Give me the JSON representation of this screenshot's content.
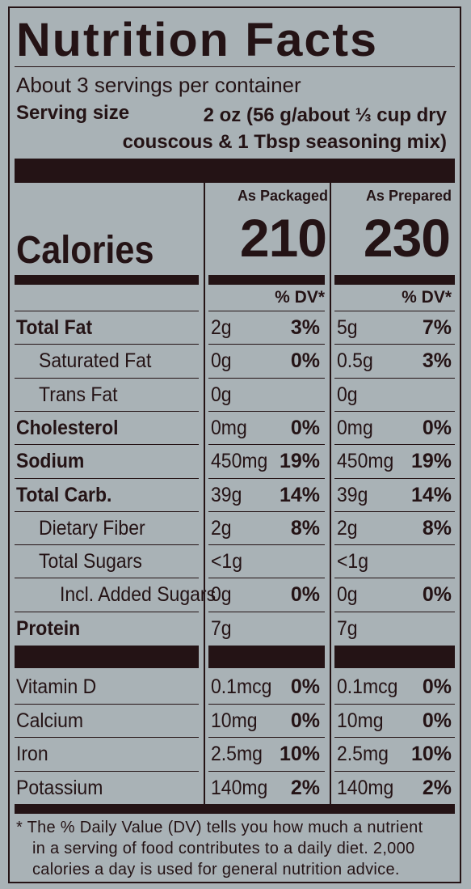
{
  "title": "Nutrition Facts",
  "servings_per_container": "About 3 servings per container",
  "serving_size_label": "Serving size",
  "serving_size_value_line1": "2 oz (56 g/about ⅓ cup dry",
  "serving_size_value_line2": "couscous & 1 Tbsp seasoning mix)",
  "columns": [
    {
      "heading": "As Packaged",
      "calories": "210",
      "dv_heading": "% DV*"
    },
    {
      "heading": "As Prepared",
      "calories": "230",
      "dv_heading": "% DV*"
    }
  ],
  "calories_label": "Calories",
  "nutrients": [
    {
      "name": "Total Fat",
      "bold": true,
      "indent": 0,
      "packaged": {
        "amount": "2g",
        "dv": "3%"
      },
      "prepared": {
        "amount": "5g",
        "dv": "7%"
      }
    },
    {
      "name": "Saturated Fat",
      "bold": false,
      "indent": 1,
      "packaged": {
        "amount": "0g",
        "dv": "0%"
      },
      "prepared": {
        "amount": "0.5g",
        "dv": "3%"
      }
    },
    {
      "name": "Trans Fat",
      "bold": false,
      "indent": 1,
      "packaged": {
        "amount": "0g",
        "dv": ""
      },
      "prepared": {
        "amount": "0g",
        "dv": ""
      }
    },
    {
      "name": "Cholesterol",
      "bold": true,
      "indent": 0,
      "packaged": {
        "amount": "0mg",
        "dv": "0%"
      },
      "prepared": {
        "amount": "0mg",
        "dv": "0%"
      }
    },
    {
      "name": "Sodium",
      "bold": true,
      "indent": 0,
      "packaged": {
        "amount": "450mg",
        "dv": "19%"
      },
      "prepared": {
        "amount": "450mg",
        "dv": "19%"
      }
    },
    {
      "name": "Total Carb.",
      "bold": true,
      "indent": 0,
      "packaged": {
        "amount": "39g",
        "dv": "14%"
      },
      "prepared": {
        "amount": "39g",
        "dv": "14%"
      }
    },
    {
      "name": "Dietary Fiber",
      "bold": false,
      "indent": 1,
      "packaged": {
        "amount": "2g",
        "dv": "8%"
      },
      "prepared": {
        "amount": "2g",
        "dv": "8%"
      }
    },
    {
      "name": "Total Sugars",
      "bold": false,
      "indent": 1,
      "packaged": {
        "amount": "<1g",
        "dv": ""
      },
      "prepared": {
        "amount": "<1g",
        "dv": ""
      }
    },
    {
      "name": "Incl. Added Sugars",
      "bold": false,
      "indent": 2,
      "packaged": {
        "amount": "0g",
        "dv": "0%"
      },
      "prepared": {
        "amount": "0g",
        "dv": "0%"
      }
    },
    {
      "name": "Protein",
      "bold": true,
      "indent": 0,
      "packaged": {
        "amount": "7g",
        "dv": ""
      },
      "prepared": {
        "amount": "7g",
        "dv": ""
      }
    }
  ],
  "vitamins": [
    {
      "name": "Vitamin D",
      "packaged": {
        "amount": "0.1mcg",
        "dv": "0%"
      },
      "prepared": {
        "amount": "0.1mcg",
        "dv": "0%"
      }
    },
    {
      "name": "Calcium",
      "packaged": {
        "amount": "10mg",
        "dv": "0%"
      },
      "prepared": {
        "amount": "10mg",
        "dv": "0%"
      }
    },
    {
      "name": "Iron",
      "packaged": {
        "amount": "2.5mg",
        "dv": "10%"
      },
      "prepared": {
        "amount": "2.5mg",
        "dv": "10%"
      }
    },
    {
      "name": "Potassium",
      "packaged": {
        "amount": "140mg",
        "dv": "2%"
      },
      "prepared": {
        "amount": "140mg",
        "dv": "2%"
      }
    }
  ],
  "footnote_line1": "* The % Daily Value (DV) tells you how much a nutrient",
  "footnote_line2": "in a serving of food contributes to a daily diet. 2,000",
  "footnote_line3": "calories a day is used for general nutrition advice.",
  "colors": {
    "background": "#a9b2b6",
    "ink": "#241315"
  }
}
